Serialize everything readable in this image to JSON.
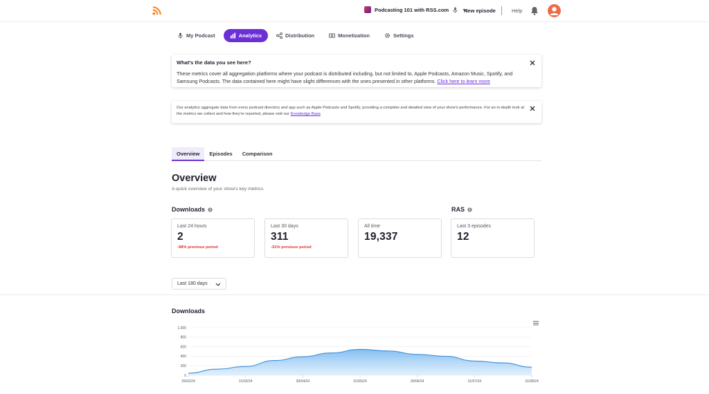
{
  "header": {
    "podcast_name": "Podcasting 101 with RSS.com",
    "new_episode_label": "New episode",
    "help_label": "Help"
  },
  "nav": {
    "items": [
      {
        "label": "My Podcast",
        "icon": "mic-icon"
      },
      {
        "label": "Analytics",
        "icon": "bar-chart-icon",
        "active": true
      },
      {
        "label": "Distribution",
        "icon": "share-icon"
      },
      {
        "label": "Monetization",
        "icon": "money-icon"
      },
      {
        "label": "Settings",
        "icon": "gear-icon"
      }
    ]
  },
  "info_box": {
    "title": "What's the data you see here?",
    "body": "These metrics cover all aggregation platforms where your podcast is distributed including, but not limited to, Apple Podcasts, Amazon Music, Spotify, and Samsung Podcasts. The data contained here might have slight differences with the ones presented in other platforms.",
    "link": "Click here to learn more"
  },
  "notice_box": {
    "body": "Our analytics aggregate data from every podcast directory and app such as Apple Podcasts and Spotify, providing a complete and detailed view of your show's performance. For an in-depth look at the metrics we collect and how they're reported, please visit our",
    "link": "Knowledge Base"
  },
  "tabs": [
    "Overview",
    "Episodes",
    "Comparison"
  ],
  "overview": {
    "title": "Overview",
    "subtitle": "A quick overview of your show's key metrics.",
    "downloads_heading": "Downloads",
    "ras_heading": "RAS",
    "metrics": [
      {
        "label": "Last 24 hours",
        "value": "2",
        "delta": "-98% previous period"
      },
      {
        "label": "Last 30 days",
        "value": "311",
        "delta": "-31% previous period"
      },
      {
        "label": "All time",
        "value": "19,337",
        "delta": ""
      },
      {
        "label": "Last 3 episodes",
        "value": "12",
        "delta": ""
      }
    ],
    "range_select": "Last 180 days"
  },
  "chart_data": {
    "type": "area",
    "title": "Downloads",
    "y_ticks": [
      "1,000",
      "800",
      "600",
      "400",
      "200",
      "0"
    ],
    "ylim": [
      0,
      1000
    ],
    "x_ticks": [
      "29/02/24",
      "31/03/24",
      "30/04/24",
      "31/05/24",
      "30/06/24",
      "31/07/24",
      "31/08/24"
    ],
    "series": [
      {
        "name": "Downloads",
        "values": [
          45,
          130,
          185,
          310,
          390,
          470,
          545,
          510,
          440,
          400,
          300,
          260,
          170
        ]
      }
    ],
    "color": "#3b8ed8"
  },
  "colors": {
    "accent": "#6b2fd6",
    "negative": "#e03131",
    "logo": "#f5821f"
  }
}
